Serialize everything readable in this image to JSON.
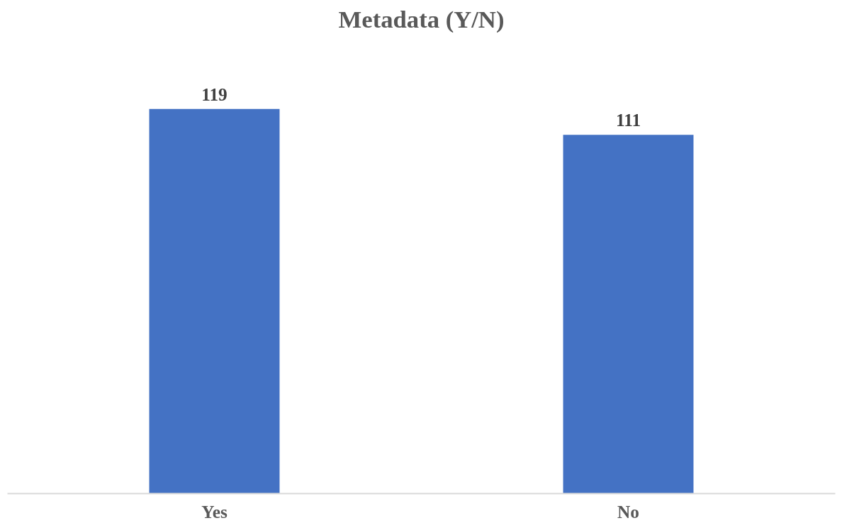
{
  "chart_data": {
    "type": "bar",
    "title": "Metadata (Y/N)",
    "categories": [
      "Yes",
      "No"
    ],
    "values": [
      119,
      111
    ],
    "color": "#4472c4",
    "data_labels": true,
    "grid": false
  }
}
